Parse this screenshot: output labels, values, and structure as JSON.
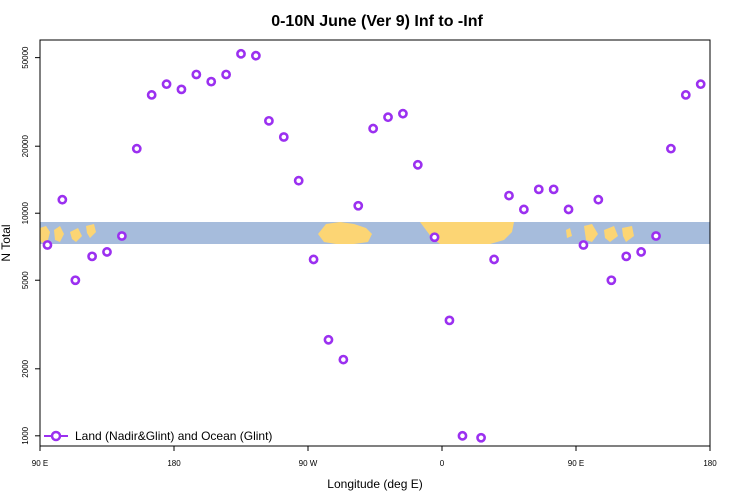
{
  "chart_data": {
    "type": "scatter",
    "title": "0-10N June (Ver 9)   Inf to -Inf",
    "xlabel": "Longitude (deg E)",
    "ylabel": "N Total",
    "xlim": [
      90,
      450
    ],
    "ylim": [
      900,
      60000
    ],
    "yscale": "log",
    "x_ticks": [
      {
        "value": 90,
        "label": "90 E"
      },
      {
        "value": 162,
        "label": "180"
      },
      {
        "value": 234,
        "label": "90 W"
      },
      {
        "value": 306,
        "label": "0"
      },
      {
        "value": 378,
        "label": "90 E"
      },
      {
        "value": 450,
        "label": "180"
      }
    ],
    "y_ticks": [
      {
        "value": 1000,
        "label": "1000"
      },
      {
        "value": 2000,
        "label": "2000"
      },
      {
        "value": 5000,
        "label": "5000"
      },
      {
        "value": 10000,
        "label": "10000"
      },
      {
        "value": 20000,
        "label": "20000"
      },
      {
        "value": 50000,
        "label": "50000"
      }
    ],
    "series": [
      {
        "name": "Land (Nadir&Glint) and Ocean (Glint)",
        "color": "#9b30f0",
        "points": [
          [
            94,
            7200
          ],
          [
            102,
            11500
          ],
          [
            109,
            5000
          ],
          [
            118,
            6400
          ],
          [
            126,
            6700
          ],
          [
            134,
            7900
          ],
          [
            142,
            19500
          ],
          [
            150,
            34000
          ],
          [
            158,
            38000
          ],
          [
            166,
            36000
          ],
          [
            174,
            42000
          ],
          [
            182,
            39000
          ],
          [
            190,
            42000
          ],
          [
            198,
            52000
          ],
          [
            206,
            51000
          ],
          [
            213,
            26000
          ],
          [
            221,
            22000
          ],
          [
            229,
            14000
          ],
          [
            237,
            6200
          ],
          [
            245,
            2700
          ],
          [
            253,
            2200
          ],
          [
            261,
            10800
          ],
          [
            269,
            24000
          ],
          [
            277,
            27000
          ],
          [
            285,
            28000
          ],
          [
            293,
            16500
          ],
          [
            302,
            7800
          ],
          [
            310,
            3300
          ],
          [
            317,
            1000
          ],
          [
            327,
            980
          ],
          [
            334,
            6200
          ],
          [
            342,
            12000
          ],
          [
            350,
            10400
          ],
          [
            358,
            12800
          ],
          [
            366,
            12800
          ],
          [
            374,
            10400
          ],
          [
            382,
            7200
          ],
          [
            390,
            11500
          ],
          [
            397,
            5000
          ],
          [
            405,
            6400
          ],
          [
            413,
            6700
          ],
          [
            421,
            7900
          ],
          [
            429,
            19500
          ],
          [
            437,
            34000
          ],
          [
            445,
            38000
          ]
        ]
      }
    ],
    "legend": "bottom-left",
    "background_map": "world map strip at 0-10N (ocean and land)"
  },
  "colors": {
    "marker": "#9b30f0",
    "ocean": "#a6bcdc",
    "land": "#fcd574"
  }
}
